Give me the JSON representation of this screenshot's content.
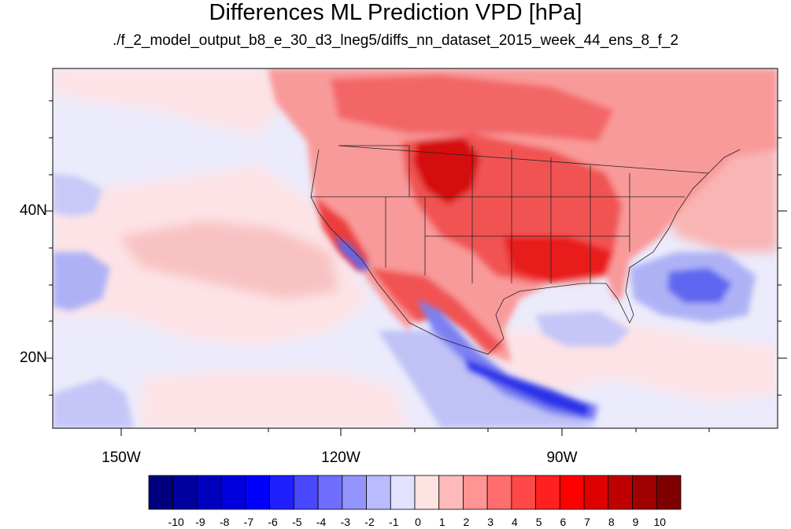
{
  "title": "Differences ML Prediction VPD [hPa]",
  "subtitle": "./f_2_model_output_b8_e_30_d3_lneg5/diffs_nn_dataset_2015_week_44_ens_8_f_2",
  "lat_labels": [
    "40N",
    "20N"
  ],
  "lon_labels": [
    "150W",
    "120W",
    "90W"
  ],
  "colorbar": {
    "labels": [
      "-10",
      "-9",
      "-8",
      "-7",
      "-6",
      "-5",
      "-4",
      "-3",
      "-2",
      "-1",
      "0",
      "1",
      "2",
      "3",
      "4",
      "5",
      "6",
      "7",
      "8",
      "9",
      "10"
    ],
    "colors": [
      "#00007f",
      "#00009f",
      "#0000bf",
      "#0000df",
      "#0000ff",
      "#2020ff",
      "#4848ff",
      "#6e6eff",
      "#9494ff",
      "#babaff",
      "#e2e2ff",
      "#ffe2e2",
      "#ffbaba",
      "#ff9494",
      "#ff6e6e",
      "#ff4848",
      "#ff2020",
      "#ff0000",
      "#df0000",
      "#bf0000",
      "#9f0000",
      "#7f0000"
    ]
  },
  "map": {
    "lon_range": [
      -160,
      -58
    ],
    "lat_range": [
      10,
      59
    ],
    "ocean_color": "#e9e8fb"
  }
}
